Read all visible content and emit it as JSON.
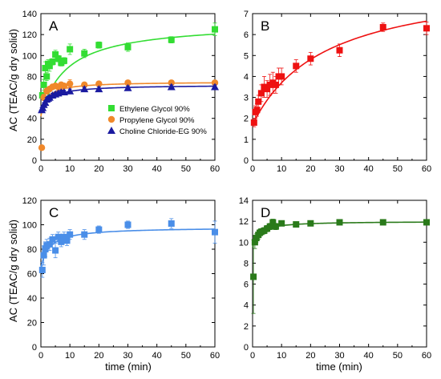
{
  "figure": {
    "xlabel": "time (min)",
    "ylabel": "AC (TEAC/g dry solid)"
  },
  "chart_data": [
    {
      "type": "scatter",
      "panel": "A",
      "xlim": [
        0,
        60
      ],
      "ylim": [
        0,
        140
      ],
      "xticks": [
        0,
        10,
        20,
        30,
        40,
        50,
        60
      ],
      "yticks": [
        0,
        20,
        40,
        60,
        80,
        100,
        120,
        140
      ],
      "legend": "middle",
      "series": [
        {
          "name": "Ethylene Glycol 90%",
          "color": "#33dd33",
          "marker": "square",
          "x": [
            0.5,
            1,
            1.5,
            2,
            2.5,
            3,
            4,
            5,
            6,
            7,
            8,
            10,
            15,
            20,
            30,
            45,
            60
          ],
          "y": [
            62,
            72,
            88,
            80,
            92,
            90,
            94,
            101,
            97,
            93,
            95,
            106,
            102,
            110,
            108,
            115,
            125
          ],
          "err": [
            3,
            5,
            6,
            4,
            4,
            5,
            3,
            4,
            3,
            3,
            3,
            5,
            4,
            3,
            4,
            3,
            6
          ],
          "fit": {
            "a": 43,
            "b": 89,
            "k": 9
          }
        },
        {
          "name": "Propylene Glycol 90%",
          "color": "#f0882a",
          "marker": "circle",
          "x": [
            0.3,
            1,
            2,
            3,
            4,
            5,
            6,
            7,
            8,
            10,
            15,
            20,
            30,
            45,
            60
          ],
          "y": [
            12,
            60,
            66,
            68,
            70,
            71,
            70,
            72,
            71,
            73,
            72,
            73,
            74,
            74,
            74
          ],
          "err": [
            0,
            3,
            3,
            2,
            2,
            2,
            2,
            2,
            2,
            4,
            2,
            2,
            2,
            2,
            2
          ],
          "fit": {
            "a": 42,
            "b": 33,
            "k": 2
          }
        },
        {
          "name": "Choline Chloride-EG 90%",
          "color": "#1a1aa0",
          "marker": "triangle",
          "x": [
            0.3,
            0.6,
            1,
            1.5,
            2,
            2.5,
            3,
            4,
            5,
            6,
            7,
            8,
            10,
            15,
            20,
            30,
            45,
            60
          ],
          "y": [
            48,
            50,
            53,
            55,
            58,
            59,
            60,
            62,
            63,
            64,
            65,
            65,
            66,
            68,
            68,
            69,
            70,
            70
          ],
          "err": [
            2,
            2,
            2,
            2,
            2,
            2,
            2,
            2,
            2,
            2,
            2,
            2,
            2,
            2,
            2,
            2,
            2,
            2
          ],
          "fit": {
            "a": 45,
            "b": 27,
            "k": 3
          }
        }
      ]
    },
    {
      "type": "scatter",
      "panel": "B",
      "xlim": [
        0,
        60
      ],
      "ylim": [
        0,
        7
      ],
      "xticks": [
        0,
        10,
        20,
        30,
        40,
        50,
        60
      ],
      "yticks": [
        0,
        1,
        2,
        3,
        4,
        5,
        6,
        7
      ],
      "series": [
        {
          "color": "#ee1111",
          "marker": "square",
          "x": [
            0.5,
            1,
            1.5,
            2,
            3,
            4,
            5,
            6,
            7,
            8,
            9,
            10,
            15,
            20,
            30,
            45,
            60
          ],
          "y": [
            1.8,
            2.3,
            2.4,
            2.8,
            3.2,
            3.5,
            3.4,
            3.6,
            3.7,
            3.6,
            4.0,
            4.0,
            4.5,
            4.85,
            5.25,
            6.35,
            6.3
          ],
          "err": [
            0.2,
            0.3,
            0.3,
            0.3,
            0.4,
            0.5,
            0.4,
            0.5,
            0.5,
            0.4,
            0.4,
            0.4,
            0.3,
            0.3,
            0.3,
            0.2,
            0.3
          ],
          "fit": {
            "a": 1.7,
            "b": 7.0,
            "k": 25
          }
        }
      ]
    },
    {
      "type": "scatter",
      "panel": "C",
      "xlim": [
        0,
        60
      ],
      "ylim": [
        0,
        120
      ],
      "xticks": [
        0,
        10,
        20,
        30,
        40,
        50,
        60
      ],
      "yticks": [
        0,
        20,
        40,
        60,
        80,
        100,
        120
      ],
      "series": [
        {
          "color": "#4a8ee8",
          "marker": "square",
          "x": [
            0.5,
            1,
            1.5,
            2,
            3,
            4,
            5,
            6,
            7,
            8,
            9,
            10,
            15,
            20,
            30,
            45,
            60
          ],
          "y": [
            63,
            75,
            80,
            83,
            84,
            88,
            79,
            90,
            86,
            90,
            87,
            92,
            92,
            96,
            100,
            101,
            94
          ],
          "err": [
            6,
            8,
            6,
            5,
            5,
            4,
            6,
            4,
            4,
            4,
            4,
            4,
            4,
            3,
            3,
            4,
            9
          ],
          "fit": {
            "a": 65,
            "b": 33,
            "k": 3
          }
        }
      ]
    },
    {
      "type": "scatter",
      "panel": "D",
      "xlim": [
        0,
        60
      ],
      "ylim": [
        0,
        14
      ],
      "xticks": [
        0,
        10,
        20,
        30,
        40,
        50,
        60
      ],
      "yticks": [
        0,
        2,
        4,
        6,
        8,
        10,
        12,
        14
      ],
      "series": [
        {
          "color": "#2a7a1a",
          "marker": "square",
          "x": [
            0.3,
            0.8,
            1.3,
            2,
            2.5,
            3,
            4,
            5,
            6,
            7,
            8,
            10,
            15,
            20,
            30,
            45,
            60
          ],
          "y": [
            6.7,
            10.0,
            10.4,
            10.7,
            10.9,
            11.0,
            11.1,
            11.3,
            11.5,
            11.9,
            11.5,
            11.8,
            11.7,
            11.8,
            11.9,
            11.9,
            11.9
          ],
          "err": [
            3.5,
            0.6,
            0.4,
            0.4,
            0.3,
            0.3,
            0.3,
            0.3,
            0.3,
            0.3,
            0.3,
            0.2,
            0.2,
            0.2,
            0.2,
            0.2,
            0.2
          ],
          "fit": {
            "a": 9.5,
            "b": 2.5,
            "k": 2
          }
        }
      ]
    }
  ]
}
